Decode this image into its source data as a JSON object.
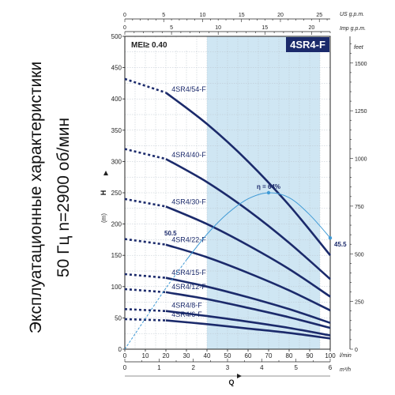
{
  "side_title": {
    "line1": "Эксплуатационные характеристики",
    "line2": "50 Гц  n=2900 об/мин"
  },
  "chart_data": {
    "type": "line",
    "title": "4SR4-F",
    "badge_color": "#1b2a6b",
    "curve_color": "#1b2a6b",
    "efficiency_color": "#3f9ad6",
    "band_color": "#cfe6f3",
    "mei_label": "MEI≥ 0.40",
    "xlabel": "Q",
    "ylabel": "H",
    "y_unit": "(m)",
    "x_main": {
      "unit": "l/min",
      "range": [
        0,
        100
      ],
      "ticks": [
        0,
        10,
        20,
        30,
        40,
        50,
        60,
        70,
        80,
        90,
        100
      ]
    },
    "x_m3h": {
      "unit": "m³/h",
      "range": [
        0,
        6
      ],
      "ticks": [
        0,
        1,
        2,
        3,
        4,
        5,
        6
      ]
    },
    "x_us_gpm": {
      "unit": "US g.p.m.",
      "range": [
        0,
        26.4
      ],
      "ticks": [
        0,
        5,
        10,
        15,
        20,
        25
      ]
    },
    "x_imp_gpm": {
      "unit": "Imp g.p.m.",
      "range": [
        0,
        22
      ],
      "ticks": [
        0,
        5,
        10,
        15,
        20
      ]
    },
    "y_main": {
      "unit": "m",
      "range": [
        0,
        500
      ],
      "ticks": [
        0,
        50,
        100,
        150,
        200,
        250,
        300,
        350,
        400,
        450,
        500
      ]
    },
    "y_feet": {
      "unit": "feet",
      "range": [
        0,
        1640
      ],
      "ticks": [
        0,
        250,
        500,
        750,
        1000,
        1250,
        1500
      ]
    },
    "recommended_range": [
      40,
      95
    ],
    "series": [
      {
        "name": "4SR4/54-F",
        "x": [
          0,
          20,
          40,
          60,
          80,
          100
        ],
        "y": [
          432,
          410,
          360,
          300,
          230,
          150
        ]
      },
      {
        "name": "4SR4/40-F",
        "x": [
          0,
          20,
          40,
          60,
          80,
          100
        ],
        "y": [
          320,
          304,
          267,
          222,
          170,
          112
        ]
      },
      {
        "name": "4SR4/30-F",
        "x": [
          0,
          20,
          40,
          60,
          80,
          100
        ],
        "y": [
          240,
          228,
          200,
          166,
          128,
          84
        ]
      },
      {
        "name": "4SR4/22-F",
        "x": [
          0,
          20,
          40,
          60,
          80,
          100
        ],
        "y": [
          176,
          167,
          147,
          122,
          94,
          62
        ]
      },
      {
        "name": "4SR4/15-F",
        "x": [
          0,
          20,
          40,
          60,
          80,
          100
        ],
        "y": [
          120,
          114,
          100,
          83,
          64,
          42
        ]
      },
      {
        "name": "4SR4/12-F",
        "x": [
          0,
          20,
          40,
          60,
          80,
          100
        ],
        "y": [
          96,
          91,
          80,
          66,
          51,
          34
        ]
      },
      {
        "name": "4SR4/8-F",
        "x": [
          0,
          20,
          40,
          60,
          80,
          100
        ],
        "y": [
          64,
          61,
          53,
          44,
          34,
          22
        ]
      },
      {
        "name": "4SR4/6-F",
        "x": [
          0,
          20,
          40,
          60,
          80,
          100
        ],
        "y": [
          48,
          46,
          40,
          33,
          26,
          17
        ]
      }
    ],
    "efficiency": {
      "name": "η",
      "x": [
        0,
        10,
        20,
        30,
        40,
        50,
        60,
        70,
        80,
        90,
        100
      ],
      "y": [
        0,
        12.5,
        25,
        36.5,
        47,
        55.5,
        61.5,
        64,
        62,
        55,
        45.5
      ],
      "scale_max": 128,
      "annotations": [
        {
          "x": 70,
          "y": 64,
          "text": "η = 64%"
        },
        {
          "x": 26,
          "y": 50.5,
          "text": "50.5"
        },
        {
          "x": 100,
          "y": 45.5,
          "text": "45.5"
        }
      ]
    }
  }
}
